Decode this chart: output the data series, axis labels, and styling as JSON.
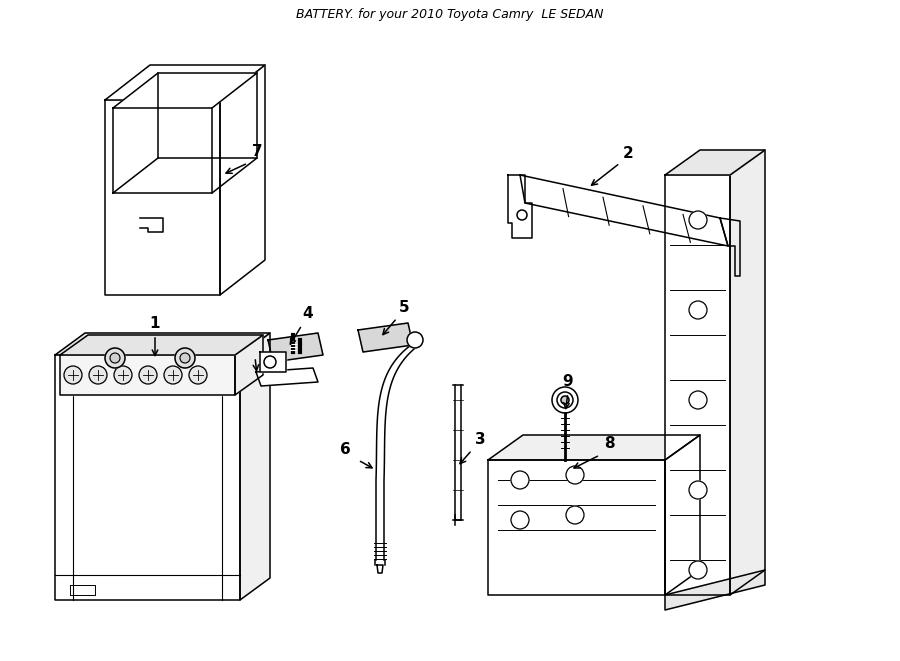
{
  "title": "BATTERY. for your 2010 Toyota Camry  LE SEDAN",
  "bg_color": "#ffffff",
  "line_color": "#000000"
}
